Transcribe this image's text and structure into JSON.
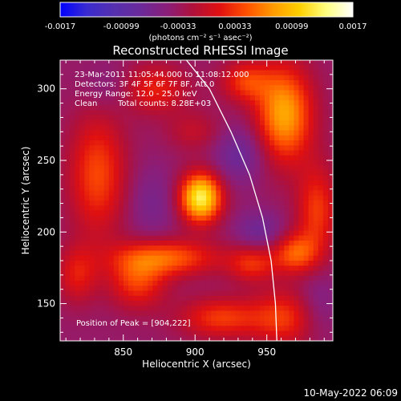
{
  "chart_data": {
    "type": "heatmap",
    "title": "Reconstructed RHESSI Image",
    "xlabel": "Heliocentric X (arcsec)",
    "ylabel": "Heliocentric Y (arcsec)",
    "xlim": [
      806,
      996
    ],
    "ylim": [
      124,
      320
    ],
    "xticks": [
      850,
      900,
      950
    ],
    "yticks": [
      150,
      200,
      250,
      300
    ],
    "colorbar": {
      "min": -0.0017,
      "max": 0.0017,
      "tick_labels": [
        "-0.0017",
        "-0.00099",
        "-0.00033",
        "0.00033",
        "0.00099",
        "0.0017"
      ],
      "unit_label": "(photons cm⁻² s⁻¹ asec⁻²)"
    },
    "annotations": {
      "time": "23-Mar-2011 11:05:44.000 to 11:08:12.000",
      "detectors": "Detectors: 3F 4F 5F 6F 7F 8F, Att 0",
      "energy": "Energy Range: 12.0 - 25.0 keV",
      "method": "Clean",
      "counts": "Total counts: 8.28E+03",
      "peak": "Position of Peak = [904,222]"
    },
    "sources": [
      {
        "x": 904,
        "y": 224,
        "amp": 1.0,
        "sx": 10,
        "sy": 12
      },
      {
        "x": 962,
        "y": 282,
        "amp": 0.72,
        "sx": 14,
        "sy": 24
      },
      {
        "x": 935,
        "y": 305,
        "amp": 0.4,
        "sx": 12,
        "sy": 10
      },
      {
        "x": 985,
        "y": 215,
        "amp": 0.42,
        "sx": 10,
        "sy": 22
      },
      {
        "x": 970,
        "y": 185,
        "amp": 0.5,
        "sx": 11,
        "sy": 10
      },
      {
        "x": 962,
        "y": 140,
        "amp": 0.4,
        "sx": 16,
        "sy": 14
      },
      {
        "x": 940,
        "y": 178,
        "amp": 0.38,
        "sx": 12,
        "sy": 9
      },
      {
        "x": 880,
        "y": 182,
        "amp": 0.52,
        "sx": 26,
        "sy": 9
      },
      {
        "x": 860,
        "y": 165,
        "amp": 0.42,
        "sx": 14,
        "sy": 13
      },
      {
        "x": 832,
        "y": 240,
        "amp": 0.46,
        "sx": 14,
        "sy": 30
      },
      {
        "x": 818,
        "y": 170,
        "amp": 0.32,
        "sx": 10,
        "sy": 14
      },
      {
        "x": 918,
        "y": 140,
        "amp": 0.42,
        "sx": 20,
        "sy": 10
      },
      {
        "x": 872,
        "y": 300,
        "amp": 0.35,
        "sx": 16,
        "sy": 12
      },
      {
        "x": 900,
        "y": 270,
        "amp": 0.2,
        "sx": 14,
        "sy": 10
      }
    ],
    "negatives": [
      {
        "x": 932,
        "y": 255,
        "amp": 0.25,
        "sx": 14,
        "sy": 14
      },
      {
        "x": 945,
        "y": 200,
        "amp": 0.22,
        "sx": 12,
        "sy": 10
      },
      {
        "x": 870,
        "y": 220,
        "amp": 0.15,
        "sx": 12,
        "sy": 18
      },
      {
        "x": 840,
        "y": 300,
        "amp": 0.12,
        "sx": 12,
        "sy": 12
      },
      {
        "x": 985,
        "y": 150,
        "amp": 0.15,
        "sx": 10,
        "sy": 16
      }
    ],
    "limb_curve": [
      [
        894,
        320
      ],
      [
        910,
        300
      ],
      [
        925,
        270
      ],
      [
        938,
        240
      ],
      [
        947,
        210
      ],
      [
        953,
        180
      ],
      [
        956,
        150
      ],
      [
        957,
        124
      ]
    ],
    "cmap": [
      "#0000ff",
      "#3a2bd0",
      "#5530b0",
      "#6a2a9a",
      "#8a1e7a",
      "#b0103a",
      "#e01010",
      "#ff5000",
      "#ff9a00",
      "#ffd000",
      "#ffff80",
      "#ffffff"
    ]
  },
  "footer_timestamp": "10-May-2022 06:09"
}
